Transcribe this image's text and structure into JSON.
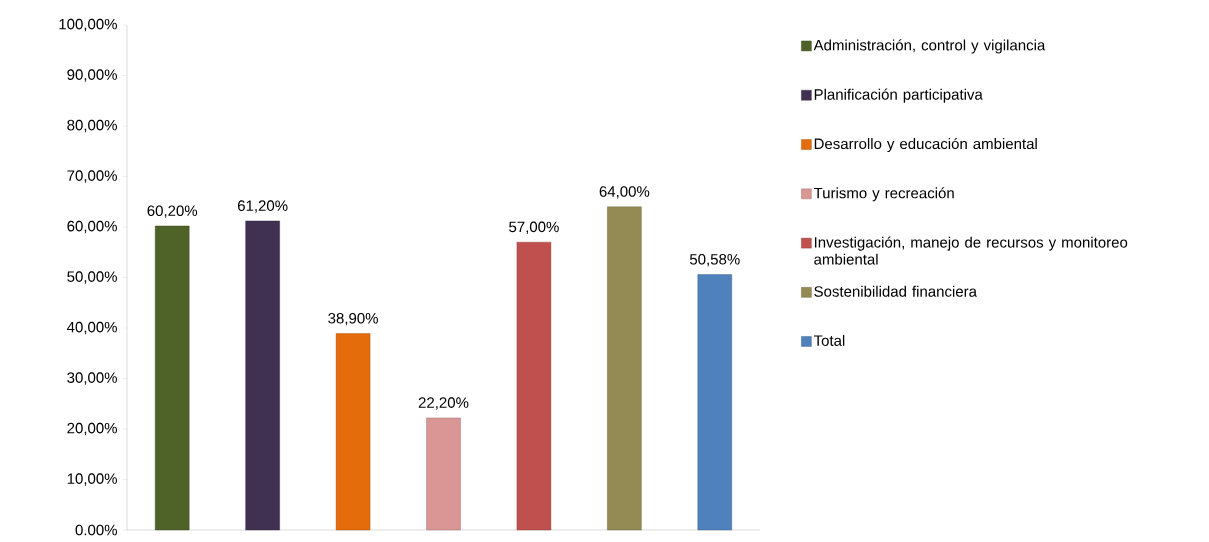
{
  "chart_data": {
    "type": "bar",
    "categories": [
      null,
      null,
      null,
      null,
      null,
      null,
      null
    ],
    "series": [
      {
        "name": "Administración, control y vigilancia",
        "color": "#4f6228",
        "values": [
          60.2,
          null,
          null,
          null,
          null,
          null,
          null
        ],
        "value_labels": [
          "60,20%",
          null,
          null,
          null,
          null,
          null,
          null
        ]
      },
      {
        "name": "Planificación participativa",
        "color": "#403152",
        "values": [
          null,
          61.2,
          null,
          null,
          null,
          null,
          null
        ],
        "value_labels": [
          null,
          "61,20%",
          null,
          null,
          null,
          null,
          null
        ]
      },
      {
        "name": "Desarrollo y educación ambiental",
        "color": "#e46c0a",
        "values": [
          null,
          null,
          38.9,
          null,
          null,
          null,
          null
        ],
        "value_labels": [
          null,
          null,
          "38,90%",
          null,
          null,
          null,
          null
        ]
      },
      {
        "name": "Turismo y recreación",
        "color": "#d99694",
        "values": [
          null,
          null,
          null,
          22.2,
          null,
          null,
          null
        ],
        "value_labels": [
          null,
          null,
          null,
          "22,20%",
          null,
          null,
          null
        ]
      },
      {
        "name": "Investigación, manejo de recursos y monitoreo ambiental",
        "color": "#c0504d",
        "values": [
          null,
          null,
          null,
          null,
          57.0,
          null,
          null
        ],
        "value_labels": [
          null,
          null,
          null,
          null,
          "57,00%",
          null,
          null
        ]
      },
      {
        "name": "Sostenibilidad financiera",
        "color": "#948a54",
        "values": [
          null,
          null,
          null,
          null,
          null,
          64.0,
          null
        ],
        "value_labels": [
          null,
          null,
          null,
          null,
          null,
          "64,00%",
          null
        ]
      },
      {
        "name": "Total",
        "color": "#4f81bd",
        "values": [
          null,
          null,
          null,
          null,
          null,
          null,
          50.58
        ],
        "value_labels": [
          null,
          null,
          null,
          null,
          null,
          null,
          "50,58%"
        ]
      }
    ],
    "ylim": [
      0,
      100
    ],
    "yticks": [
      {
        "value": 0,
        "label": "0.00%"
      },
      {
        "value": 10,
        "label": "10,00%"
      },
      {
        "value": 20,
        "label": "20,00%"
      },
      {
        "value": 30,
        "label": "30,00%"
      },
      {
        "value": 40,
        "label": "40,00%"
      },
      {
        "value": 50,
        "label": "50,00%"
      },
      {
        "value": 60,
        "label": "60,00%"
      },
      {
        "value": 70,
        "label": "70,00%"
      },
      {
        "value": 80,
        "label": "80,00%"
      },
      {
        "value": 90,
        "label": "90,00%"
      },
      {
        "value": 100,
        "label": "100,00%"
      }
    ],
    "legend": "right",
    "tick_labels": "y"
  }
}
